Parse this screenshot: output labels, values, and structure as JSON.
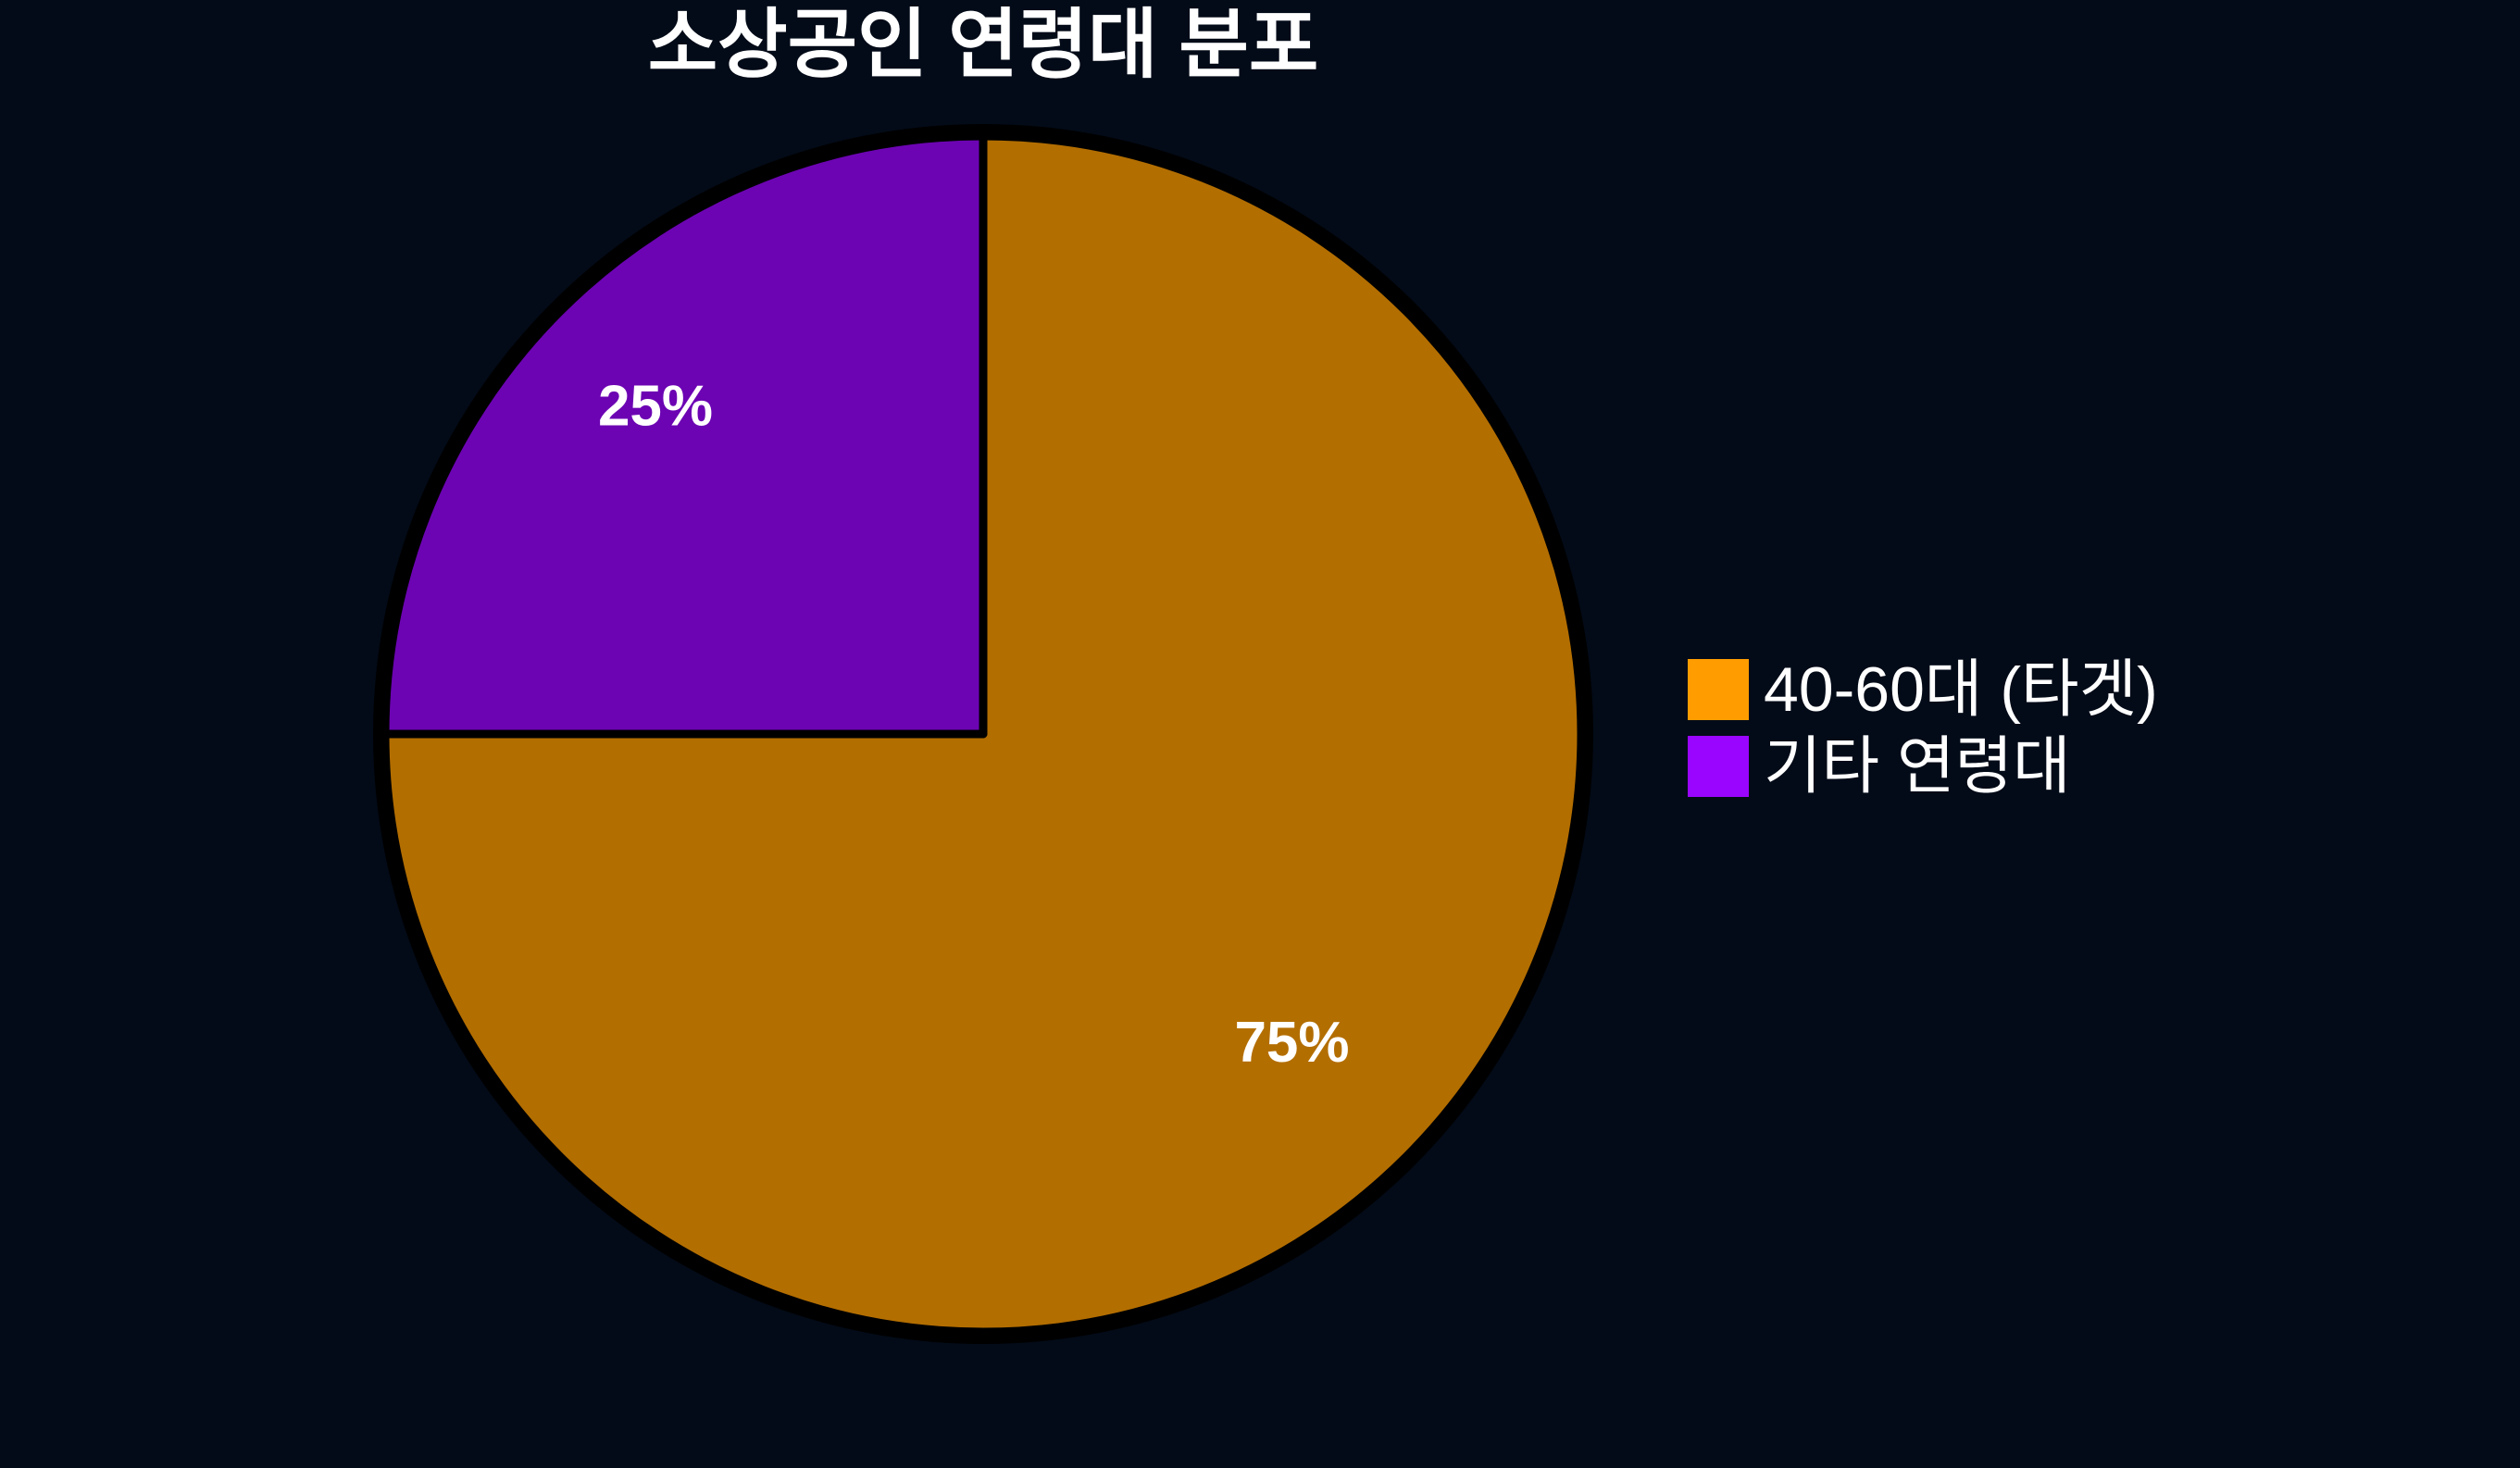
{
  "page": {
    "background": "#030B18",
    "text_color": "#FFFFFF"
  },
  "chart_data": {
    "type": "pie",
    "title": "소상공인 연령대 분포",
    "slices": [
      {
        "label": "40-60대 (타겟)",
        "value": 75,
        "pct_label": "75%",
        "color": "#FF9D00"
      },
      {
        "label": "기타 연령대",
        "value": 25,
        "pct_label": "25%",
        "color": "#9A05FF"
      }
    ],
    "start_angle": 90,
    "direction": "clockwise",
    "wedge_alpha": 0.7,
    "edge_color": "#000000",
    "pct_label_color": "#FFFFFF",
    "legend_position": "right"
  }
}
